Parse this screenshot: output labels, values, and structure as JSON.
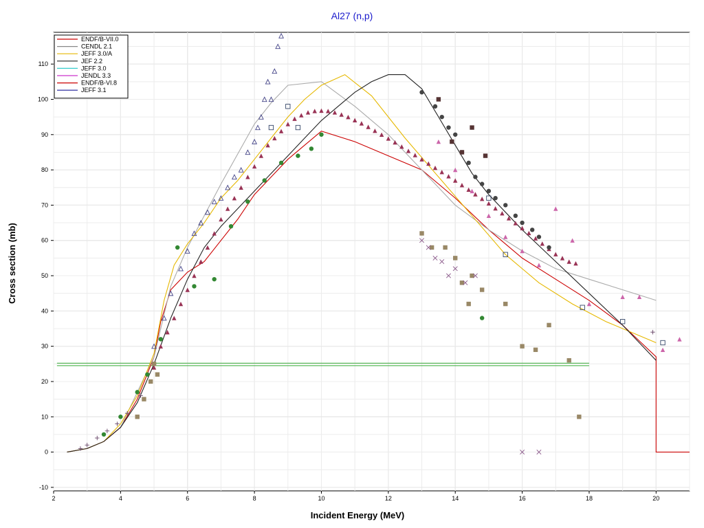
{
  "chart_data": {
    "type": "line",
    "title": "Al27 (n,p)",
    "xlabel": "Incident Energy (MeV)",
    "ylabel": "Cross section (mb)",
    "xlim": [
      2,
      21
    ],
    "ylim": [
      -11,
      119
    ],
    "x_ticks": [
      2,
      4,
      6,
      8,
      10,
      12,
      14,
      16,
      18,
      20
    ],
    "y_ticks": [
      -10,
      0,
      10,
      20,
      30,
      40,
      50,
      60,
      70,
      80,
      90,
      100,
      110
    ],
    "grid": true,
    "legend_position": "top-left",
    "legend": [
      {
        "name": "ENDF/B-VII.0",
        "color": "#cc0000"
      },
      {
        "name": "CENDL 2.1",
        "color": "#888888"
      },
      {
        "name": "JEFF 3.0/A",
        "color": "#e6b800"
      },
      {
        "name": "JEF 2.2",
        "color": "#222222"
      },
      {
        "name": "JEFF 3.0",
        "color": "#33cccc"
      },
      {
        "name": "JENDL 3.3",
        "color": "#cc33cc"
      },
      {
        "name": "ENDF/B-VI.8",
        "color": "#cc0000"
      },
      {
        "name": "JEFF 3.1",
        "color": "#1a1a99"
      }
    ],
    "series": [
      {
        "name": "ENDF/B-VII.0",
        "color": "#cc0000",
        "x": [
          2.4,
          3.0,
          3.5,
          4.0,
          4.5,
          5.0,
          5.2,
          5.5,
          6.0,
          6.5,
          7.0,
          7.5,
          8.0,
          8.5,
          9.0,
          9.5,
          10.0,
          11.0,
          12.0,
          13.0,
          14.0,
          15.0,
          16.0,
          17.0,
          18.0,
          19.0,
          20.0,
          20.0,
          21.0
        ],
        "y": [
          0,
          1,
          3,
          7,
          15,
          27,
          37,
          46,
          51,
          54,
          60,
          66,
          73,
          78,
          83,
          87,
          91,
          88,
          84,
          80,
          72,
          63,
          55,
          49,
          43,
          36,
          27,
          0,
          0
        ]
      },
      {
        "name": "CENDL 2.1",
        "color": "#aaaaaa",
        "x": [
          4.0,
          5.0,
          5.5,
          6.0,
          7.0,
          8.0,
          8.5,
          9.0,
          10.0,
          11.0,
          12.0,
          13.0,
          14.0,
          15.0,
          16.0,
          17.0,
          18.0,
          19.0,
          20.0
        ],
        "y": [
          7,
          27,
          47,
          58,
          76,
          93,
          99,
          104,
          105,
          98,
          90,
          80,
          70,
          63,
          57,
          52,
          49,
          46,
          43
        ]
      },
      {
        "name": "JEFF 3.0/A",
        "color": "#e6b800",
        "x": [
          2.4,
          3.0,
          3.5,
          4.0,
          4.5,
          5.0,
          5.3,
          5.6,
          6.0,
          6.5,
          7.0,
          7.5,
          8.0,
          8.5,
          9.0,
          9.5,
          10.0,
          10.7,
          11.5,
          12.5,
          13.5,
          14.5,
          15.5,
          16.5,
          17.5,
          18.5,
          19.5,
          20.0
        ],
        "y": [
          0,
          1,
          3,
          8,
          16,
          28,
          43,
          53,
          59,
          65,
          72,
          77,
          83,
          89,
          95,
          100,
          104,
          107,
          101,
          89,
          78,
          67,
          56,
          48,
          42,
          37,
          33,
          31
        ]
      },
      {
        "name": "JEF 2.2",
        "color": "#222222",
        "x": [
          2.4,
          3.0,
          3.5,
          4.0,
          4.5,
          5.0,
          5.5,
          6.0,
          6.5,
          7.0,
          7.5,
          8.0,
          8.5,
          9.0,
          9.5,
          10.0,
          10.5,
          11.0,
          11.5,
          12.0,
          12.5,
          13.0,
          13.5,
          14.0,
          14.5,
          15.0,
          16.0,
          17.0,
          18.0,
          19.0,
          20.0
        ],
        "y": [
          0,
          1,
          3,
          7,
          14,
          25,
          38,
          49,
          58,
          64,
          69,
          74,
          79,
          84,
          89,
          94,
          98,
          102,
          105,
          107,
          107,
          103,
          95,
          87,
          79,
          73,
          63,
          54,
          45,
          36,
          26
        ]
      }
    ],
    "horizontal_lines": [
      {
        "color": "#33aa33",
        "x_range": [
          2.1,
          18.0
        ],
        "y": 24.5
      },
      {
        "color": "#33aa33",
        "x_range": [
          2.1,
          18.0
        ],
        "y": 25.2
      }
    ],
    "dense_markers": {
      "name": "JENDL 3.3",
      "color": "#993355",
      "x": [
        5.0,
        5.2,
        5.4,
        5.6,
        5.8,
        6.0,
        6.2,
        6.4,
        6.6,
        6.8,
        7.0,
        7.2,
        7.4,
        7.6,
        7.8,
        8.0,
        8.2,
        8.4,
        8.6,
        8.8,
        9.0,
        9.2,
        9.4,
        9.6,
        9.8,
        10.0,
        10.2,
        10.4,
        10.6,
        10.8,
        11.0,
        11.2,
        11.4,
        11.6,
        11.8,
        12.0,
        12.2,
        12.4,
        12.6,
        12.8,
        13.0,
        13.2,
        13.4,
        13.6,
        13.8,
        14.0,
        14.2,
        14.4,
        14.6,
        14.8,
        15.0,
        15.2,
        15.4,
        15.6,
        15.8,
        16.0,
        16.2,
        16.4,
        16.6,
        16.8,
        17.0,
        17.2,
        17.4,
        17.6
      ],
      "y": [
        24,
        30,
        34,
        38,
        42,
        46,
        50,
        54,
        58,
        62,
        66,
        69,
        72,
        75,
        78,
        81,
        84,
        87,
        89,
        91,
        93,
        94.5,
        95.5,
        96.3,
        96.7,
        96.8,
        96.7,
        96.3,
        95.7,
        95.0,
        94.1,
        93.2,
        92.2,
        91.1,
        90.0,
        88.9,
        87.8,
        86.6,
        85.4,
        84.2,
        83.0,
        81.8,
        80.6,
        79.4,
        78.2,
        77.0,
        75.7,
        74.4,
        73.1,
        71.8,
        70.5,
        69.1,
        67.7,
        66.3,
        64.9,
        63.5,
        62.1,
        60.6,
        59.1,
        57.6,
        56.1,
        55.0,
        54.0,
        53.5
      ]
    },
    "experimental_points": [
      {
        "shape": "triangle-open",
        "color": "#444488",
        "x": [
          5.0,
          5.3,
          5.5,
          5.8,
          6.0,
          6.2,
          6.4,
          6.6,
          6.8,
          7.0,
          7.2,
          7.4,
          7.6,
          7.8,
          8.0,
          8.1,
          8.2,
          8.3,
          8.4,
          8.5,
          8.6,
          8.7,
          8.8
        ],
        "y": [
          30,
          38,
          45,
          52,
          57,
          62,
          65,
          68,
          71,
          72,
          75,
          78,
          80,
          85,
          88,
          92,
          95,
          100,
          105,
          100,
          108,
          115,
          118
        ]
      },
      {
        "shape": "circle",
        "color": "#338833",
        "x": [
          3.5,
          4.0,
          4.5,
          4.8,
          5.0,
          5.2,
          5.7,
          6.2,
          6.8,
          7.3,
          7.8,
          8.3,
          8.8,
          9.3,
          9.7,
          10.0,
          14.8
        ],
        "y": [
          5,
          10,
          17,
          22,
          25,
          32,
          58,
          47,
          49,
          64,
          71,
          77,
          82,
          84,
          86,
          90,
          38
        ]
      },
      {
        "shape": "square",
        "color": "#998866",
        "x": [
          4.5,
          4.7,
          4.9,
          5.0,
          5.1,
          13.0,
          13.3,
          13.7,
          14.0,
          14.2,
          14.4,
          14.5,
          14.8,
          15.5,
          16.0,
          16.4,
          16.8,
          17.4,
          17.7
        ],
        "y": [
          10,
          15,
          20,
          25,
          22,
          62,
          58,
          58,
          55,
          48,
          42,
          50,
          46,
          42,
          30,
          29,
          36,
          26,
          10
        ]
      },
      {
        "shape": "triangle",
        "color": "#cc66aa",
        "x": [
          13.5,
          14.0,
          14.5,
          15.0,
          15.5,
          16.0,
          16.5,
          17.0,
          17.5,
          18.0,
          19.0,
          19.5,
          20.2,
          20.7
        ],
        "y": [
          88,
          80,
          74,
          67,
          61,
          57,
          53,
          69,
          60,
          42,
          44,
          44,
          29,
          32
        ]
      },
      {
        "shape": "circle-dark",
        "color": "#444444",
        "x": [
          13.0,
          13.4,
          13.6,
          13.8,
          14.0,
          14.2,
          14.4,
          14.6,
          14.8,
          15.0,
          15.2,
          15.5,
          15.8,
          16.0,
          16.3,
          16.5,
          16.8
        ],
        "y": [
          102,
          98,
          95,
          92,
          90,
          85,
          82,
          78,
          76,
          74,
          72,
          70,
          67,
          65,
          63,
          61,
          58
        ]
      },
      {
        "shape": "square-dark",
        "color": "#553333",
        "x": [
          13.5,
          13.9,
          14.2,
          14.5,
          14.9
        ],
        "y": [
          100,
          88,
          85,
          92,
          84
        ]
      },
      {
        "shape": "cross",
        "color": "#885588",
        "x": [
          13.0,
          13.2,
          13.4,
          13.6,
          13.8,
          14.0,
          14.3,
          14.6,
          16.0,
          16.5
        ],
        "y": [
          60,
          58,
          55,
          54,
          50,
          52,
          48,
          50,
          0,
          0
        ]
      },
      {
        "shape": "plus",
        "color": "#664466",
        "x": [
          2.8,
          3.0,
          3.3,
          3.6,
          3.9,
          4.2,
          4.6,
          19.9
        ],
        "y": [
          1,
          2,
          4,
          6,
          8,
          11,
          16,
          34
        ]
      },
      {
        "shape": "square-open",
        "color": "#334466",
        "x": [
          8.5,
          9.0,
          9.3,
          15.0,
          15.5,
          17.8,
          19.0,
          20.2
        ],
        "y": [
          92,
          98,
          92,
          72,
          56,
          41,
          37,
          31
        ]
      }
    ]
  }
}
